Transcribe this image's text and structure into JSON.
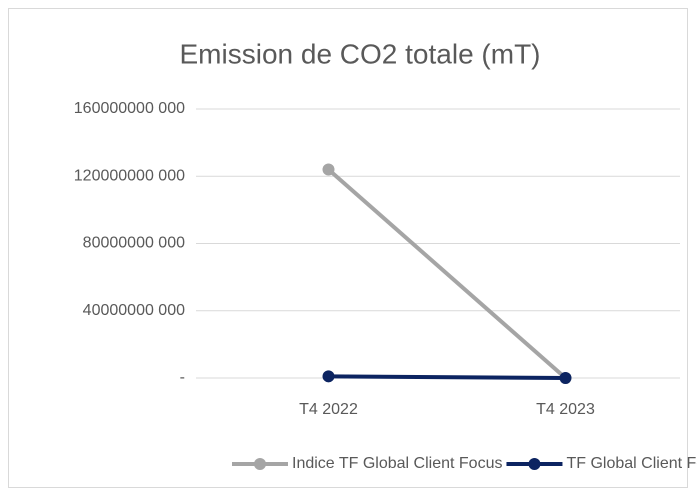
{
  "chart_data": {
    "type": "line",
    "title": "Emission de CO2 totale (mT)",
    "categories": [
      "T4 2022",
      "T4 2023"
    ],
    "series": [
      {
        "name": "Indice TF Global Client Focus",
        "color": "#a5a5a5",
        "values": [
          124000000000,
          0
        ]
      },
      {
        "name": "TF Global Client Focus",
        "color": "#0c2461",
        "values": [
          1000000000,
          0
        ]
      }
    ],
    "ylim": [
      0,
      160000000000
    ],
    "yticks": [
      {
        "value": 0,
        "label": "-"
      },
      {
        "value": 40000000000,
        "label": "40000000 000"
      },
      {
        "value": 80000000000,
        "label": "80000000 000"
      },
      {
        "value": 120000000000,
        "label": "120000000 000"
      },
      {
        "value": 160000000000,
        "label": "160000000 000"
      }
    ],
    "grid": true,
    "legend": "bottom"
  }
}
